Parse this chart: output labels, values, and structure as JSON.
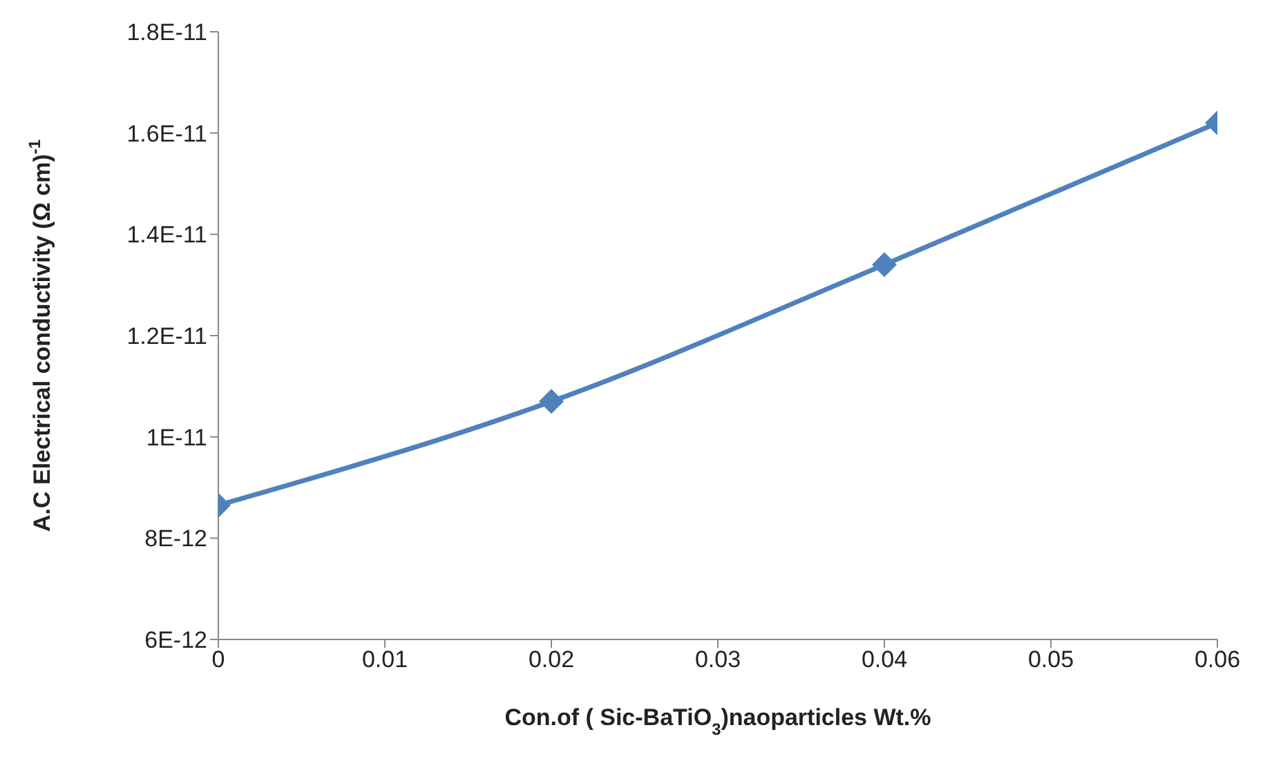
{
  "chart_data": {
    "type": "line",
    "xlabel": "Con.of ( Sic-BaTiO$_{3}$)naoparticles  Wt.%",
    "ylabel": "A.C Electrical conductivity (Ω cm)$^{-1}$",
    "x": [
      0,
      0.02,
      0.04,
      0.06
    ],
    "series": [
      {
        "color": "#4f81bd",
        "values": [
          8.65e-12,
          1.07e-11,
          1.34e-11,
          1.62e-11
        ]
      }
    ],
    "xlim": [
      0,
      0.06
    ],
    "xticks": [
      0,
      0.01,
      0.02,
      0.03,
      0.04,
      0.05,
      0.06
    ],
    "ylim": [
      6e-12,
      1.8e-11
    ],
    "yticks": [
      {
        "value": 6e-12,
        "label": "6E-12"
      },
      {
        "value": 8e-12,
        "label": "8E-12"
      },
      {
        "value": 1e-11,
        "label": "1E-11"
      },
      {
        "value": 1.2e-11,
        "label": "1.2E-11"
      },
      {
        "value": 1.4e-11,
        "label": "1.4E-11"
      },
      {
        "value": 1.6e-11,
        "label": "1.6E-11"
      },
      {
        "value": 1.8e-11,
        "label": "1.8E-11"
      }
    ],
    "grid": false,
    "legend": false,
    "marker": "diamond",
    "line_style": "solid"
  }
}
